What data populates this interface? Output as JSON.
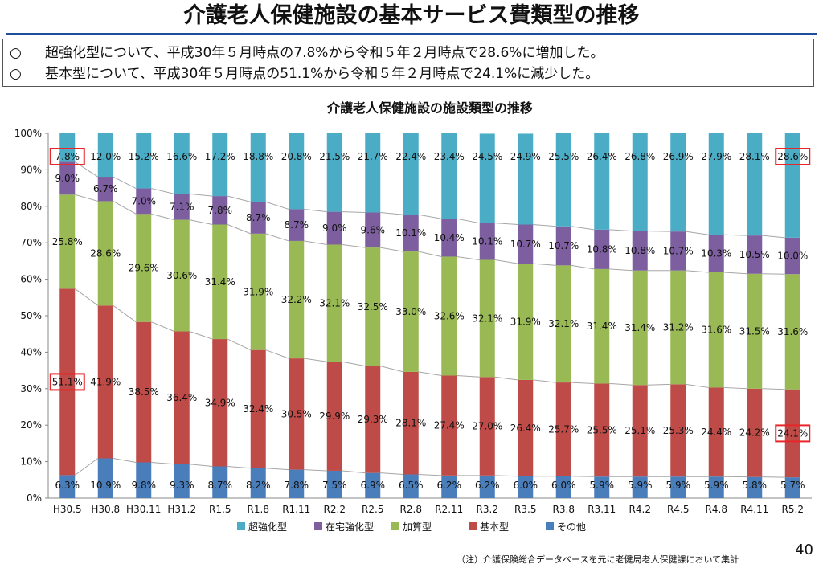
{
  "header": {
    "title": "介護老人保健施設の基本サービス費類型の推移"
  },
  "summary": {
    "bullet": "○",
    "lines": [
      "超強化型について、平成30年５月時点の7.8%から令和５年２月時点で28.6%に増加した。",
      "基本型について、平成30年５月時点の51.1%から令和５年２月時点で24.1%に減少した。"
    ]
  },
  "footer": {
    "note": "（注）介護保険総合データベースを元に老健局老人保健課において集計",
    "page_number": "40"
  },
  "chart_data": {
    "type": "bar",
    "stacked": true,
    "title": "介護老人保健施設の施設類型の推移",
    "categories": [
      "H30.5",
      "H30.8",
      "H30.11",
      "H31.2",
      "R1.5",
      "R1.8",
      "R1.11",
      "R2.2",
      "R2.5",
      "R2.8",
      "R2.11",
      "R3.2",
      "R3.5",
      "R3.8",
      "R3.11",
      "R4.2",
      "R4.5",
      "R4.8",
      "R4.11",
      "R5.2"
    ],
    "ylim": [
      0,
      100
    ],
    "y_ticks": [
      "0%",
      "10%",
      "20%",
      "30%",
      "40%",
      "50%",
      "60%",
      "70%",
      "80%",
      "90%",
      "100%"
    ],
    "grid": false,
    "legend_position": "bottom",
    "series": [
      {
        "name": "その他",
        "color": "#4a7ebb",
        "values": [
          6.3,
          10.9,
          9.8,
          9.3,
          8.7,
          8.2,
          7.8,
          7.5,
          6.9,
          6.5,
          6.2,
          6.2,
          6.0,
          6.0,
          5.9,
          5.9,
          5.9,
          5.9,
          5.8,
          5.7
        ]
      },
      {
        "name": "基本型",
        "color": "#be4b48",
        "values": [
          51.1,
          41.9,
          38.5,
          36.4,
          34.9,
          32.4,
          30.5,
          29.9,
          29.3,
          28.1,
          27.4,
          27.0,
          26.4,
          25.7,
          25.5,
          25.1,
          25.3,
          24.4,
          24.2,
          24.1
        ]
      },
      {
        "name": "加算型",
        "color": "#98b954",
        "values": [
          25.8,
          28.6,
          29.6,
          30.6,
          31.4,
          31.9,
          32.2,
          32.1,
          32.5,
          33.0,
          32.6,
          32.1,
          31.9,
          32.1,
          31.4,
          31.4,
          31.2,
          31.6,
          31.5,
          31.6
        ]
      },
      {
        "name": "在宅強化型",
        "color": "#7d5fa0",
        "values": [
          9.0,
          6.7,
          7.0,
          7.1,
          7.8,
          8.7,
          8.7,
          9.0,
          9.6,
          10.1,
          10.4,
          10.1,
          10.7,
          10.7,
          10.8,
          10.8,
          10.7,
          10.3,
          10.5,
          10.0
        ]
      },
      {
        "name": "超強化型",
        "color": "#4bacc6",
        "values": [
          7.8,
          12.0,
          15.2,
          16.6,
          17.2,
          18.8,
          20.8,
          21.5,
          21.7,
          22.4,
          23.4,
          24.5,
          24.9,
          25.5,
          26.4,
          26.8,
          26.9,
          27.9,
          28.1,
          28.6
        ]
      }
    ],
    "legend_order": [
      "超強化型",
      "在宅強化型",
      "加算型",
      "基本型",
      "その他"
    ],
    "highlights": [
      {
        "series": "超強化型",
        "category": "H30.5",
        "color": "#e8262a"
      },
      {
        "series": "基本型",
        "category": "H30.5",
        "color": "#e8262a"
      },
      {
        "series": "超強化型",
        "category": "R5.2",
        "color": "#e8262a"
      },
      {
        "series": "基本型",
        "category": "R5.2",
        "color": "#e8262a"
      }
    ]
  }
}
